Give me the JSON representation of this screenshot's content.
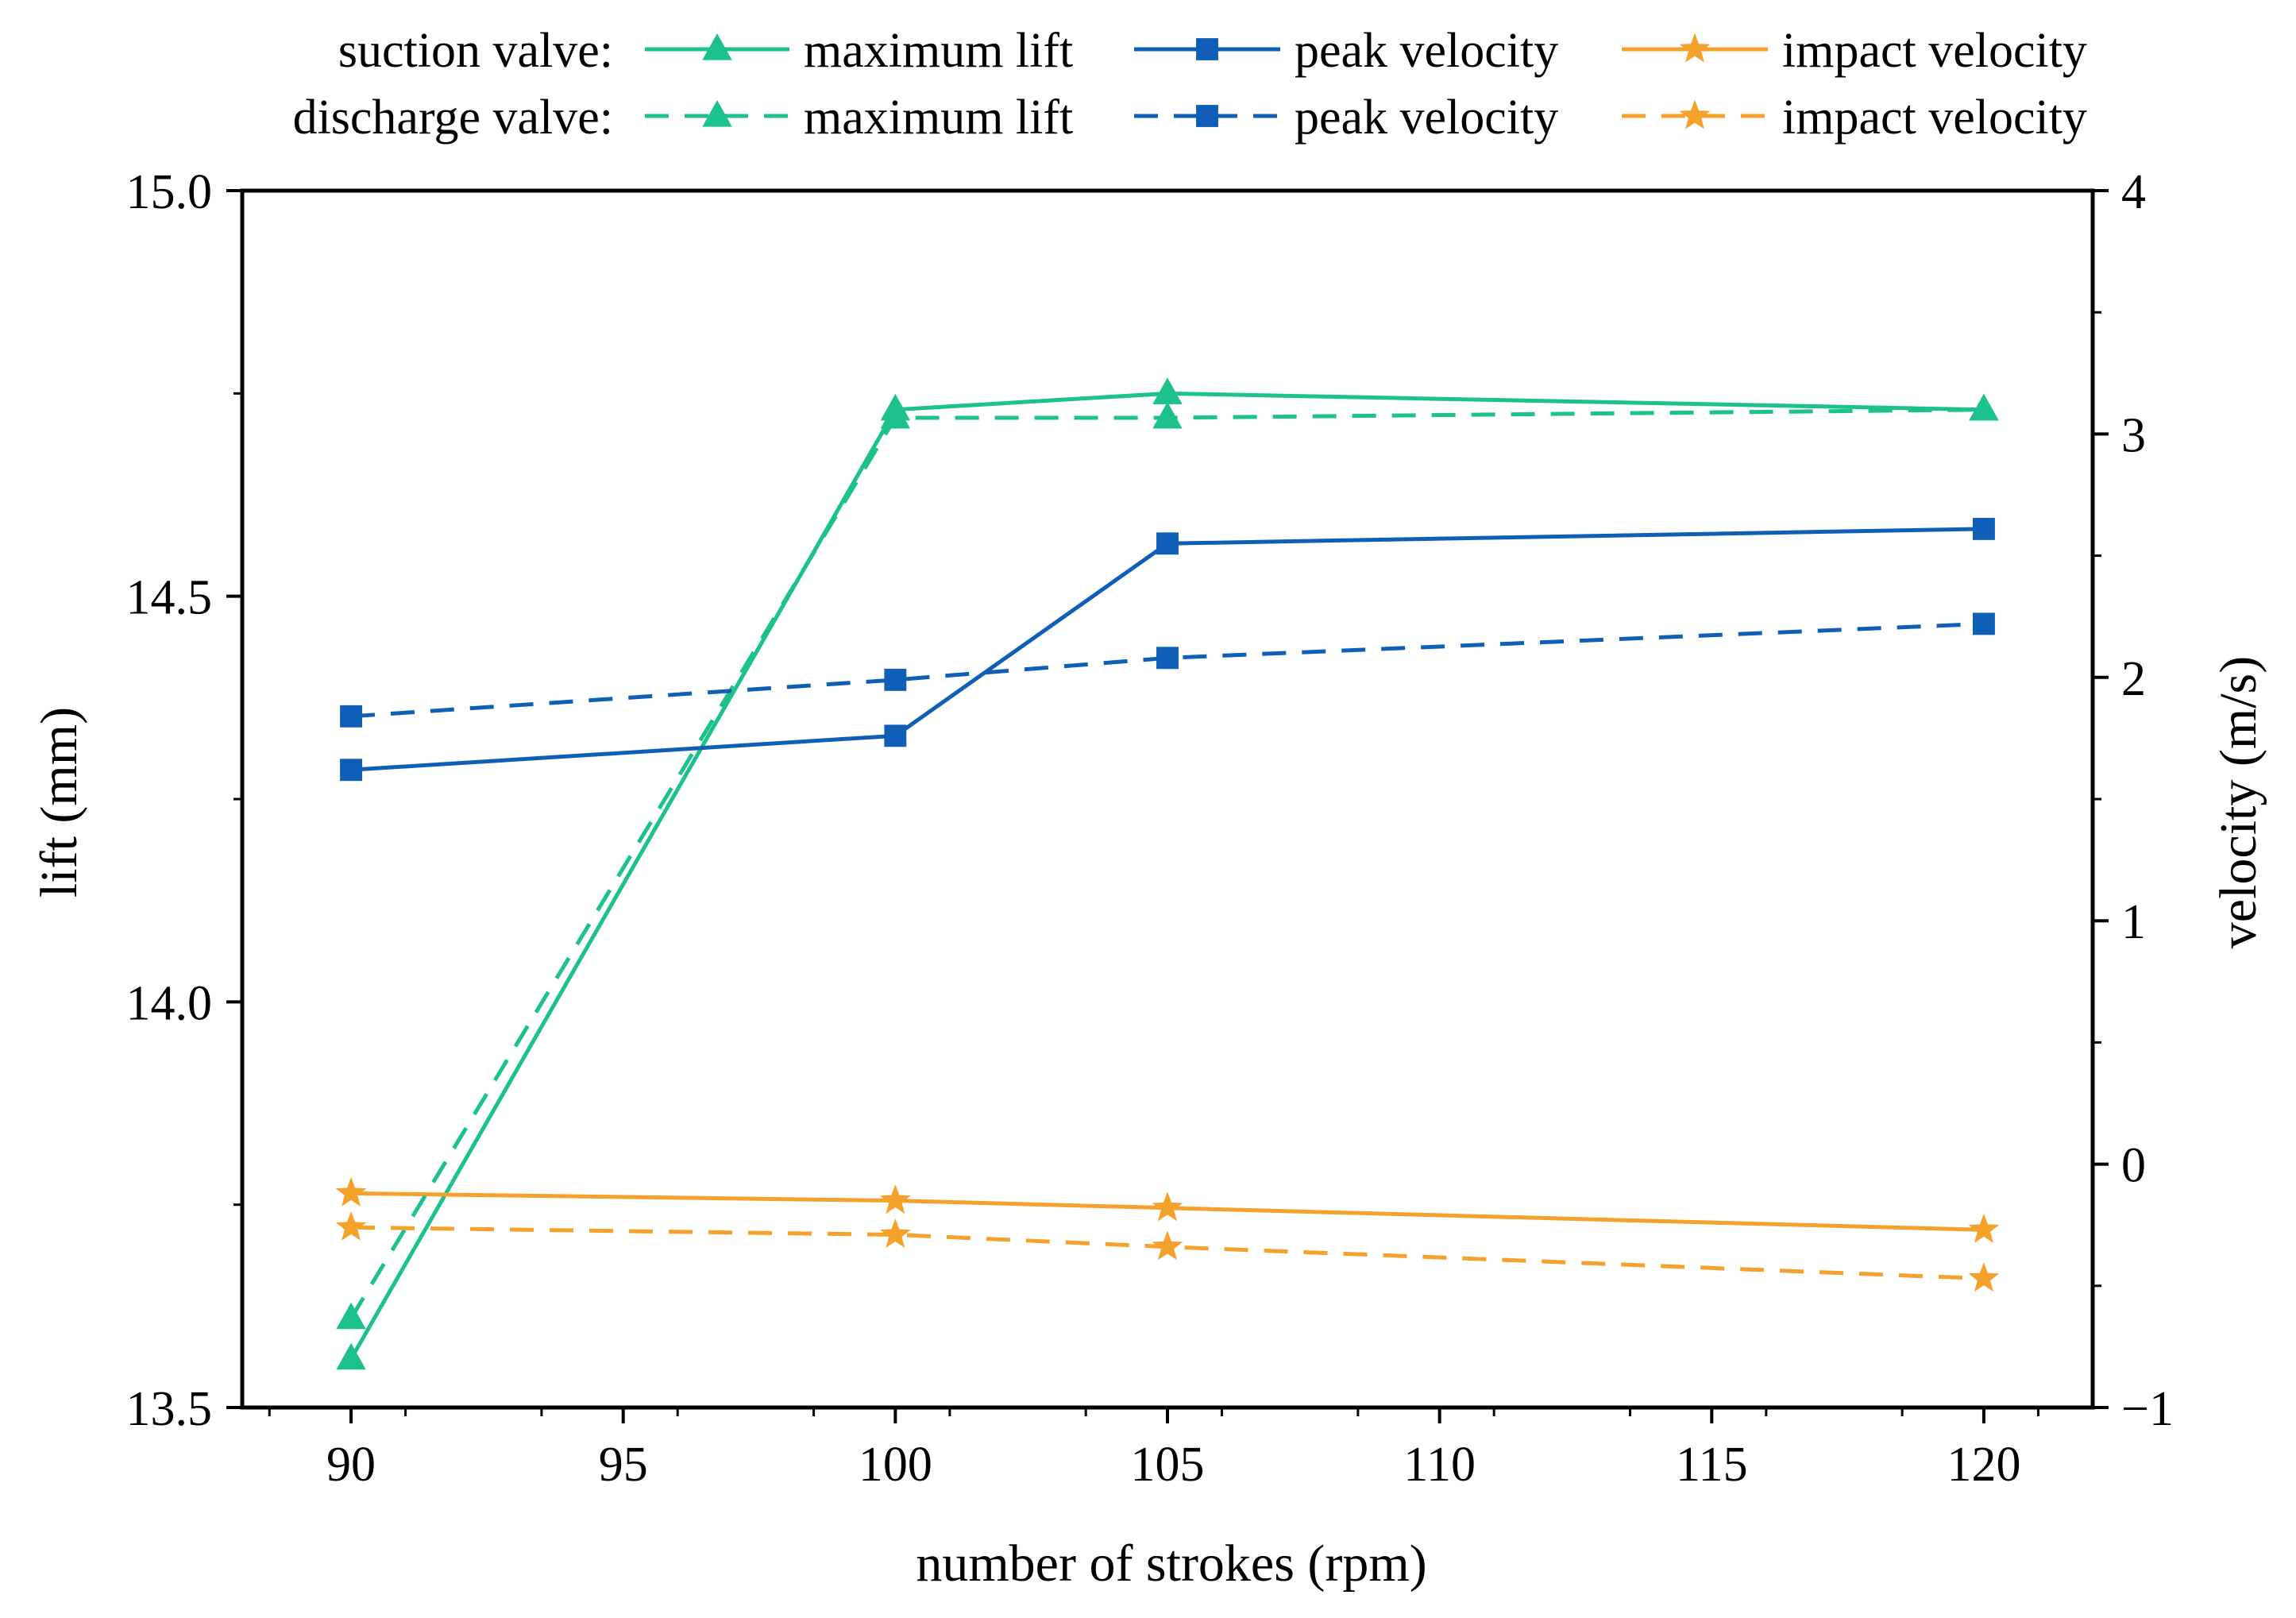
{
  "chart_data": {
    "type": "line",
    "title": "",
    "xlabel": "number of strokes (rpm)",
    "ylabel_left": "lift (mm)",
    "ylabel_right": "velocity (m/s)",
    "xlim": [
      88,
      122
    ],
    "ylim_left": [
      13.5,
      15.0
    ],
    "ylim_right": [
      -1,
      4
    ],
    "x_ticks": [
      "90",
      "95",
      "100",
      "105",
      "110",
      "115",
      "120"
    ],
    "y_left_ticks": [
      "13.5",
      "14.0",
      "14.5",
      "15.0"
    ],
    "y_right_ticks": [
      "−1",
      "0",
      "1",
      "2",
      "3",
      "4"
    ],
    "legend": {
      "placement": "top",
      "groups": [
        {
          "label": "suction valve:",
          "style": "solid"
        },
        {
          "label": "discharge valve:",
          "style": "dashed"
        }
      ]
    },
    "x": [
      90,
      100,
      105,
      120
    ],
    "series": [
      {
        "name": "maximum lift",
        "group": "suction valve",
        "axis": "left",
        "style": "solid",
        "marker": "triangle",
        "color": "#1CC18E",
        "values": [
          13.56,
          14.73,
          14.75,
          14.73
        ]
      },
      {
        "name": "peak velocity",
        "group": "suction valve",
        "axis": "right",
        "style": "solid",
        "marker": "square",
        "color": "#0F5FB6",
        "values": [
          1.62,
          1.76,
          2.55,
          2.61
        ]
      },
      {
        "name": "impact velocity",
        "group": "suction valve",
        "axis": "right",
        "style": "solid",
        "marker": "star",
        "color": "#F5A22D",
        "values": [
          -0.12,
          -0.15,
          -0.18,
          -0.27
        ]
      },
      {
        "name": "maximum lift",
        "group": "discharge valve",
        "axis": "left",
        "style": "dashed",
        "marker": "triangle",
        "color": "#1CC18E",
        "values": [
          13.61,
          14.72,
          14.72,
          14.73
        ]
      },
      {
        "name": "peak velocity",
        "group": "discharge valve",
        "axis": "right",
        "style": "dashed",
        "marker": "square",
        "color": "#0F5FB6",
        "values": [
          1.84,
          1.99,
          2.08,
          2.22
        ]
      },
      {
        "name": "impact velocity",
        "group": "discharge valve",
        "axis": "right",
        "style": "dashed",
        "marker": "star",
        "color": "#F5A22D",
        "values": [
          -0.26,
          -0.29,
          -0.34,
          -0.47
        ]
      }
    ]
  }
}
